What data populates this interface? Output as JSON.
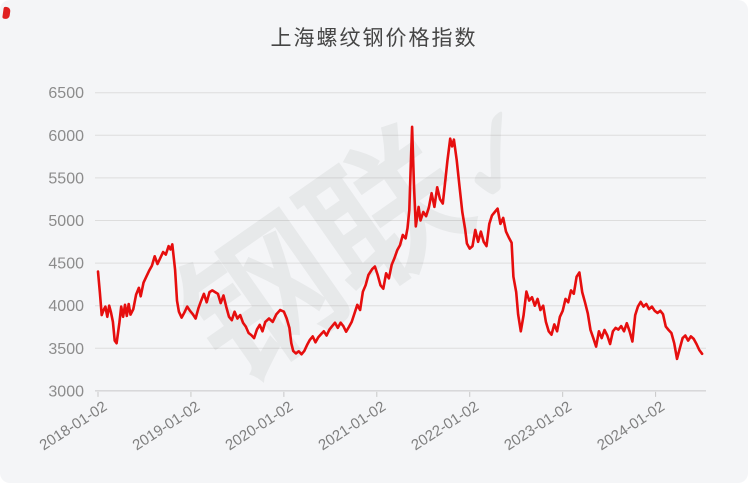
{
  "header": {
    "title": "上海螺纹钢价格指数"
  },
  "watermark": {
    "text": "钢联",
    "check_glyph": "✓"
  },
  "colors": {
    "background": "#f4f5f7",
    "line": "#e60e0e",
    "grid": "#dddddd",
    "axis": "#c8c8c8",
    "y_label": "#8c8c8c",
    "x_label": "#7f7f7f",
    "title": "#454545",
    "corner_mark": "#e02020"
  },
  "chart_data": {
    "type": "line",
    "title": "上海螺纹钢价格指数",
    "xlabel": "",
    "ylabel": "",
    "legend": [],
    "grid": "horizontal-only",
    "ylim": [
      3000,
      6500
    ],
    "y_ticks": [
      3000,
      3500,
      4000,
      4500,
      5000,
      5500,
      6000,
      6500
    ],
    "xlim_years": [
      0,
      6.51
    ],
    "x_ticks": [
      {
        "t": 0,
        "label": "2018-01-02"
      },
      {
        "t": 1,
        "label": "2019-01-02"
      },
      {
        "t": 2,
        "label": "2020-01-02"
      },
      {
        "t": 3,
        "label": "2021-01-02"
      },
      {
        "t": 4,
        "label": "2022-01-02"
      },
      {
        "t": 5,
        "label": "2023-01-02"
      },
      {
        "t": 6,
        "label": "2024-01-02"
      }
    ],
    "series": [
      {
        "name": "上海螺纹钢价格指数",
        "color": "#e60e0e",
        "points": [
          [
            0.0,
            4400
          ],
          [
            0.02,
            4150
          ],
          [
            0.04,
            3890
          ],
          [
            0.06,
            3950
          ],
          [
            0.08,
            3990
          ],
          [
            0.1,
            3870
          ],
          [
            0.12,
            4000
          ],
          [
            0.14,
            3920
          ],
          [
            0.16,
            3810
          ],
          [
            0.18,
            3590
          ],
          [
            0.2,
            3560
          ],
          [
            0.23,
            3800
          ],
          [
            0.25,
            3990
          ],
          [
            0.27,
            3870
          ],
          [
            0.29,
            4010
          ],
          [
            0.31,
            3880
          ],
          [
            0.33,
            4020
          ],
          [
            0.35,
            3895
          ],
          [
            0.38,
            3960
          ],
          [
            0.41,
            4130
          ],
          [
            0.44,
            4210
          ],
          [
            0.46,
            4110
          ],
          [
            0.49,
            4270
          ],
          [
            0.52,
            4340
          ],
          [
            0.55,
            4410
          ],
          [
            0.58,
            4470
          ],
          [
            0.61,
            4580
          ],
          [
            0.64,
            4490
          ],
          [
            0.67,
            4560
          ],
          [
            0.7,
            4630
          ],
          [
            0.73,
            4600
          ],
          [
            0.76,
            4700
          ],
          [
            0.78,
            4660
          ],
          [
            0.8,
            4720
          ],
          [
            0.83,
            4420
          ],
          [
            0.85,
            4060
          ],
          [
            0.87,
            3930
          ],
          [
            0.9,
            3860
          ],
          [
            0.93,
            3920
          ],
          [
            0.96,
            3990
          ],
          [
            0.99,
            3940
          ],
          [
            1.02,
            3900
          ],
          [
            1.05,
            3850
          ],
          [
            1.08,
            3970
          ],
          [
            1.11,
            4060
          ],
          [
            1.14,
            4140
          ],
          [
            1.17,
            4040
          ],
          [
            1.2,
            4160
          ],
          [
            1.23,
            4180
          ],
          [
            1.26,
            4160
          ],
          [
            1.29,
            4140
          ],
          [
            1.32,
            4030
          ],
          [
            1.35,
            4120
          ],
          [
            1.38,
            3990
          ],
          [
            1.41,
            3870
          ],
          [
            1.44,
            3830
          ],
          [
            1.47,
            3930
          ],
          [
            1.5,
            3850
          ],
          [
            1.53,
            3890
          ],
          [
            1.56,
            3800
          ],
          [
            1.59,
            3755
          ],
          [
            1.62,
            3680
          ],
          [
            1.65,
            3655
          ],
          [
            1.68,
            3620
          ],
          [
            1.71,
            3720
          ],
          [
            1.74,
            3775
          ],
          [
            1.77,
            3700
          ],
          [
            1.8,
            3810
          ],
          [
            1.84,
            3850
          ],
          [
            1.88,
            3810
          ],
          [
            1.92,
            3900
          ],
          [
            1.96,
            3950
          ],
          [
            2.0,
            3930
          ],
          [
            2.03,
            3850
          ],
          [
            2.06,
            3740
          ],
          [
            2.08,
            3560
          ],
          [
            2.1,
            3470
          ],
          [
            2.13,
            3440
          ],
          [
            2.16,
            3465
          ],
          [
            2.19,
            3430
          ],
          [
            2.22,
            3470
          ],
          [
            2.25,
            3540
          ],
          [
            2.28,
            3600
          ],
          [
            2.31,
            3640
          ],
          [
            2.34,
            3570
          ],
          [
            2.37,
            3630
          ],
          [
            2.4,
            3665
          ],
          [
            2.43,
            3700
          ],
          [
            2.46,
            3650
          ],
          [
            2.49,
            3720
          ],
          [
            2.52,
            3760
          ],
          [
            2.55,
            3800
          ],
          [
            2.58,
            3740
          ],
          [
            2.61,
            3800
          ],
          [
            2.64,
            3760
          ],
          [
            2.67,
            3695
          ],
          [
            2.7,
            3750
          ],
          [
            2.73,
            3810
          ],
          [
            2.76,
            3910
          ],
          [
            2.79,
            4010
          ],
          [
            2.82,
            3950
          ],
          [
            2.85,
            4165
          ],
          [
            2.88,
            4240
          ],
          [
            2.91,
            4360
          ],
          [
            2.95,
            4430
          ],
          [
            2.98,
            4460
          ],
          [
            3.01,
            4360
          ],
          [
            3.04,
            4240
          ],
          [
            3.07,
            4200
          ],
          [
            3.1,
            4380
          ],
          [
            3.13,
            4320
          ],
          [
            3.16,
            4480
          ],
          [
            3.19,
            4560
          ],
          [
            3.22,
            4650
          ],
          [
            3.25,
            4710
          ],
          [
            3.28,
            4830
          ],
          [
            3.31,
            4790
          ],
          [
            3.33,
            4910
          ],
          [
            3.35,
            5120
          ],
          [
            3.37,
            5800
          ],
          [
            3.38,
            6100
          ],
          [
            3.4,
            5400
          ],
          [
            3.42,
            4930
          ],
          [
            3.45,
            5160
          ],
          [
            3.47,
            5000
          ],
          [
            3.5,
            5100
          ],
          [
            3.53,
            5050
          ],
          [
            3.56,
            5150
          ],
          [
            3.59,
            5320
          ],
          [
            3.62,
            5160
          ],
          [
            3.65,
            5390
          ],
          [
            3.68,
            5250
          ],
          [
            3.71,
            5200
          ],
          [
            3.74,
            5500
          ],
          [
            3.76,
            5700
          ],
          [
            3.79,
            5960
          ],
          [
            3.81,
            5870
          ],
          [
            3.83,
            5950
          ],
          [
            3.86,
            5710
          ],
          [
            3.89,
            5400
          ],
          [
            3.92,
            5100
          ],
          [
            3.95,
            4900
          ],
          [
            3.97,
            4730
          ],
          [
            4.0,
            4670
          ],
          [
            4.03,
            4700
          ],
          [
            4.06,
            4890
          ],
          [
            4.09,
            4750
          ],
          [
            4.12,
            4870
          ],
          [
            4.15,
            4750
          ],
          [
            4.18,
            4700
          ],
          [
            4.21,
            4960
          ],
          [
            4.24,
            5060
          ],
          [
            4.27,
            5100
          ],
          [
            4.3,
            5140
          ],
          [
            4.33,
            4960
          ],
          [
            4.36,
            5030
          ],
          [
            4.39,
            4870
          ],
          [
            4.42,
            4800
          ],
          [
            4.45,
            4740
          ],
          [
            4.47,
            4340
          ],
          [
            4.5,
            4160
          ],
          [
            4.52,
            3900
          ],
          [
            4.55,
            3700
          ],
          [
            4.58,
            3890
          ],
          [
            4.61,
            4165
          ],
          [
            4.64,
            4060
          ],
          [
            4.67,
            4100
          ],
          [
            4.7,
            4000
          ],
          [
            4.73,
            4080
          ],
          [
            4.76,
            3950
          ],
          [
            4.79,
            4000
          ],
          [
            4.82,
            3810
          ],
          [
            4.85,
            3700
          ],
          [
            4.88,
            3660
          ],
          [
            4.91,
            3780
          ],
          [
            4.94,
            3700
          ],
          [
            4.97,
            3870
          ],
          [
            5.0,
            3940
          ],
          [
            5.03,
            4080
          ],
          [
            5.06,
            4040
          ],
          [
            5.09,
            4180
          ],
          [
            5.12,
            4140
          ],
          [
            5.15,
            4340
          ],
          [
            5.18,
            4390
          ],
          [
            5.21,
            4160
          ],
          [
            5.24,
            4040
          ],
          [
            5.27,
            3910
          ],
          [
            5.3,
            3715
          ],
          [
            5.33,
            3620
          ],
          [
            5.36,
            3520
          ],
          [
            5.39,
            3700
          ],
          [
            5.42,
            3620
          ],
          [
            5.45,
            3715
          ],
          [
            5.48,
            3650
          ],
          [
            5.51,
            3550
          ],
          [
            5.54,
            3700
          ],
          [
            5.57,
            3740
          ],
          [
            5.6,
            3720
          ],
          [
            5.63,
            3760
          ],
          [
            5.66,
            3700
          ],
          [
            5.69,
            3795
          ],
          [
            5.72,
            3700
          ],
          [
            5.75,
            3580
          ],
          [
            5.78,
            3890
          ],
          [
            5.81,
            3990
          ],
          [
            5.84,
            4045
          ],
          [
            5.87,
            3990
          ],
          [
            5.9,
            4020
          ],
          [
            5.93,
            3960
          ],
          [
            5.96,
            3990
          ],
          [
            5.99,
            3940
          ],
          [
            6.02,
            3915
          ],
          [
            6.05,
            3940
          ],
          [
            6.08,
            3900
          ],
          [
            6.11,
            3755
          ],
          [
            6.14,
            3715
          ],
          [
            6.17,
            3680
          ],
          [
            6.2,
            3560
          ],
          [
            6.23,
            3375
          ],
          [
            6.26,
            3500
          ],
          [
            6.29,
            3620
          ],
          [
            6.32,
            3650
          ],
          [
            6.35,
            3590
          ],
          [
            6.38,
            3640
          ],
          [
            6.41,
            3610
          ],
          [
            6.44,
            3550
          ],
          [
            6.47,
            3480
          ],
          [
            6.5,
            3435
          ]
        ]
      }
    ]
  }
}
